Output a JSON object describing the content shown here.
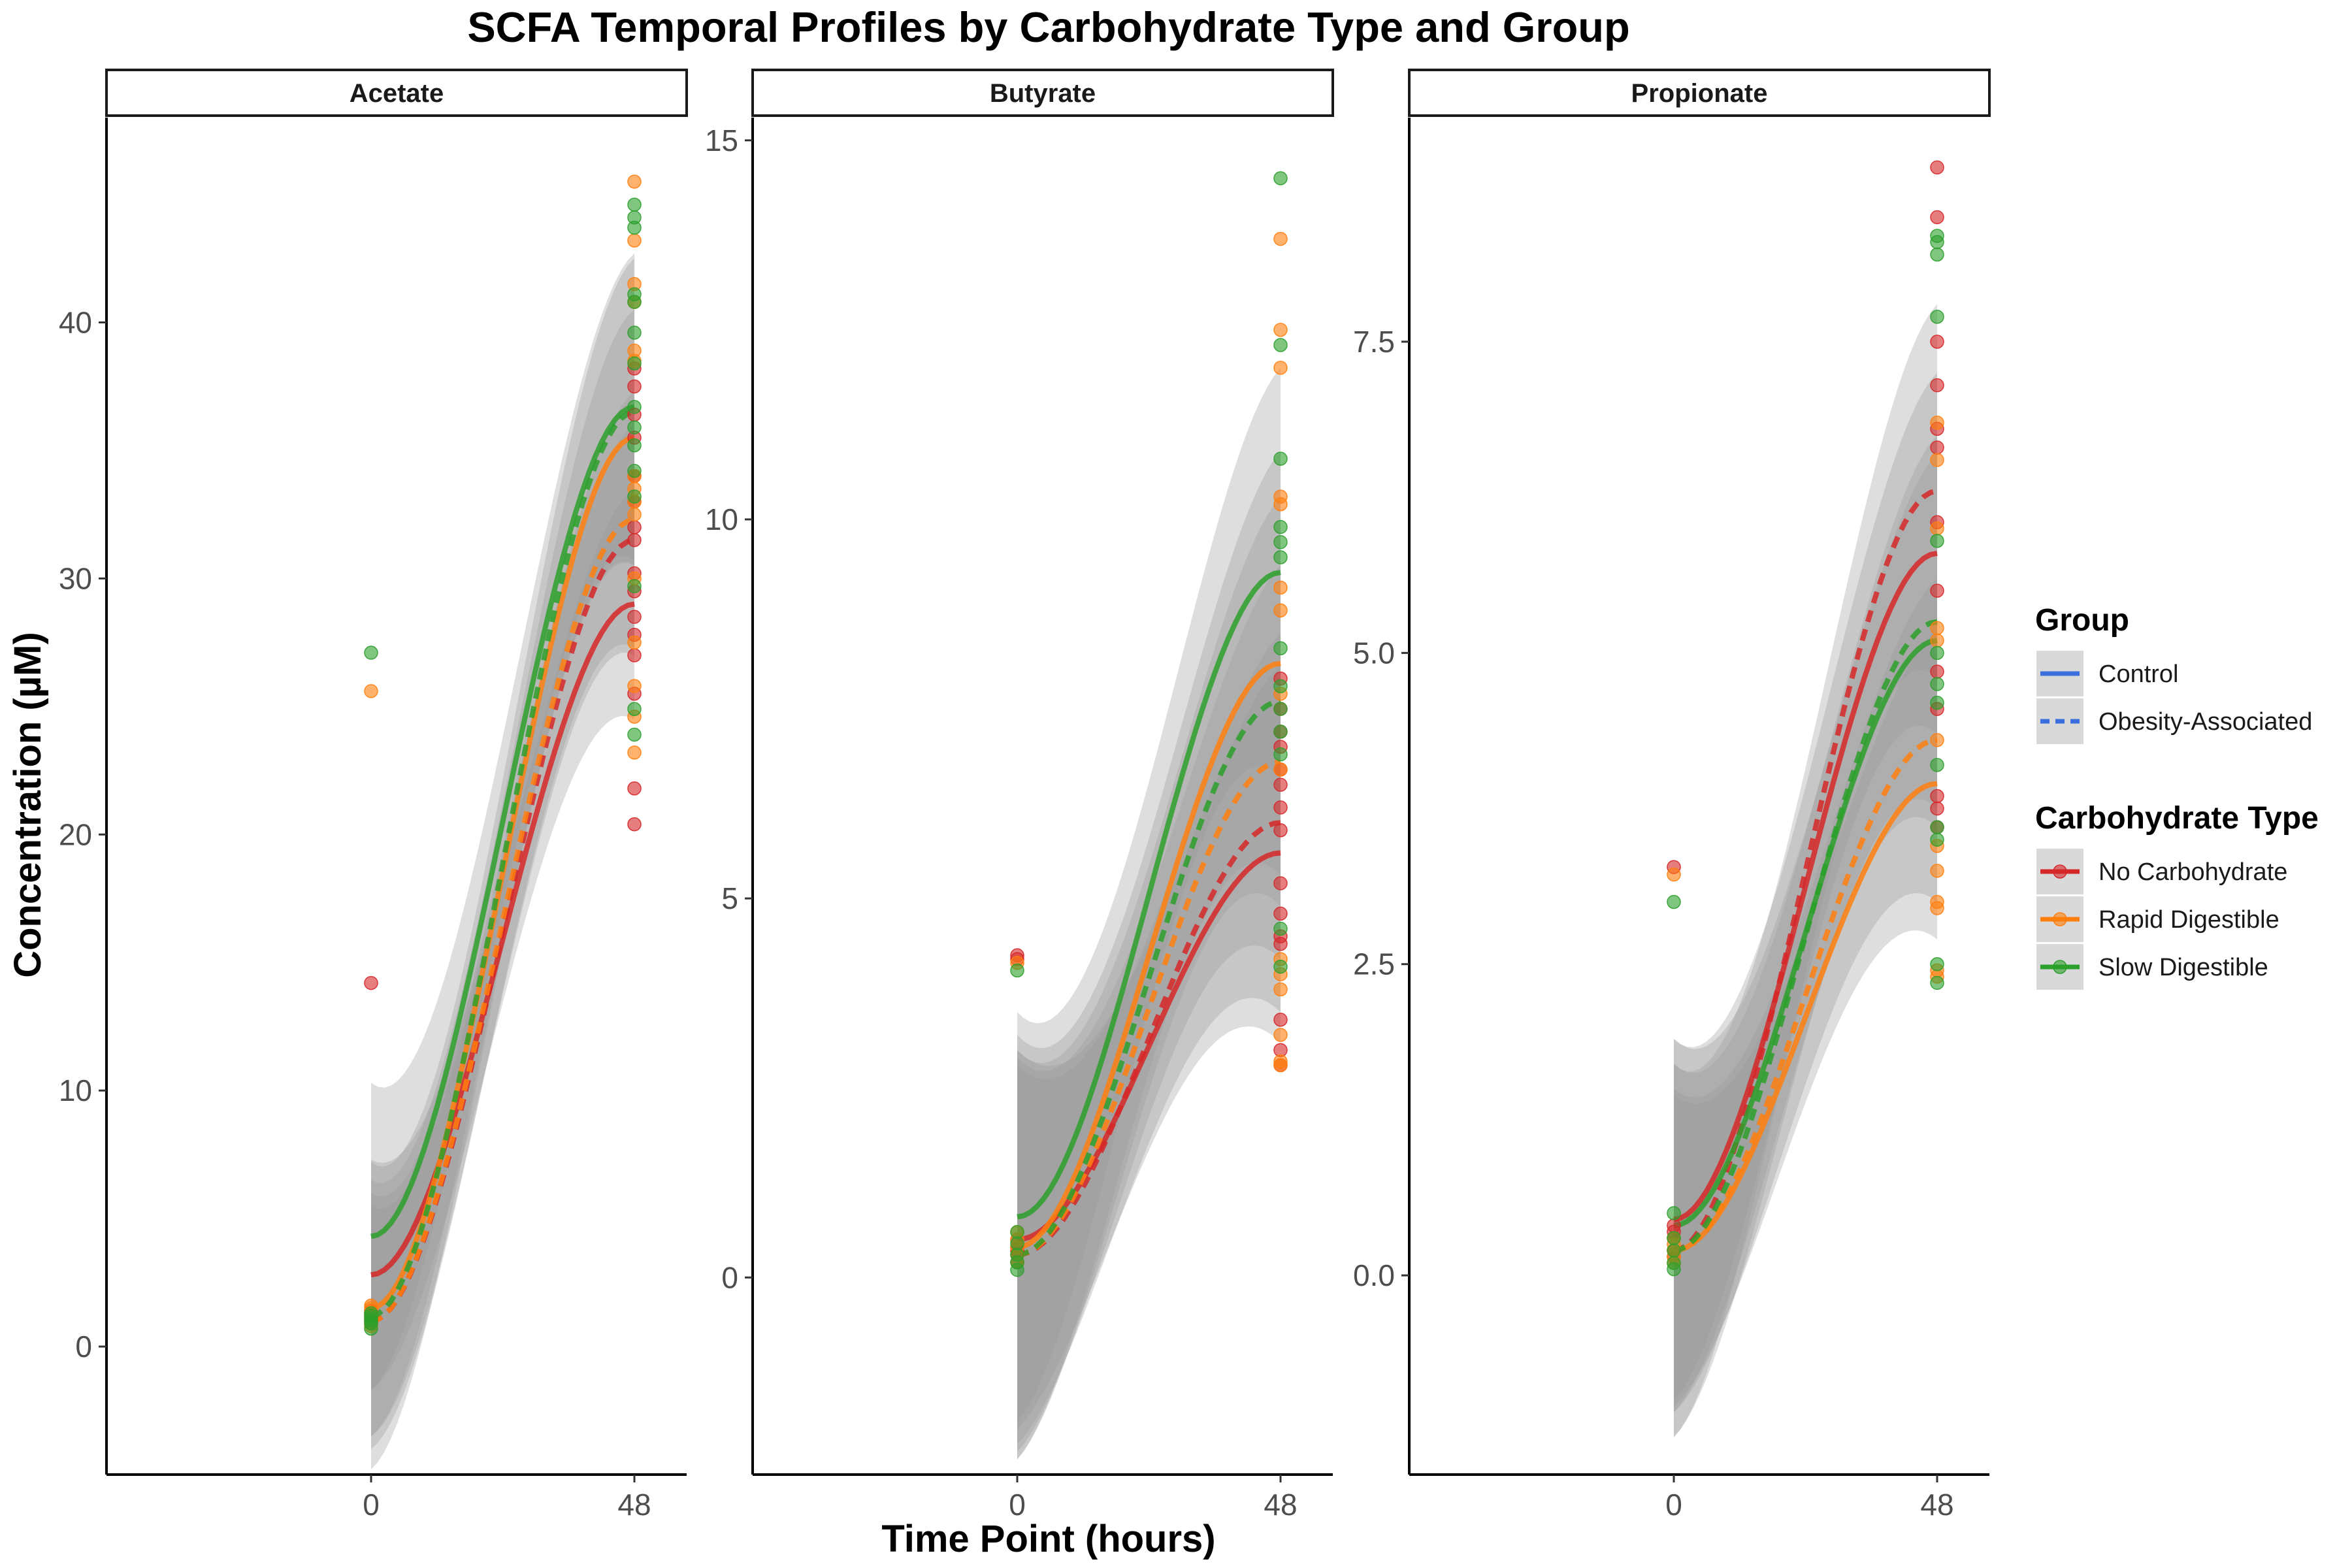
{
  "chart_data": {
    "type": "line",
    "title": "SCFA Temporal Profiles by Carbohydrate Type and Group",
    "xlabel": "Time Point (hours)",
    "ylabel": "Concentration (µM)",
    "x_ticks": [
      "0",
      "48"
    ],
    "x_values": [
      0,
      48
    ],
    "grid": false,
    "legend_position": "right",
    "legend": {
      "group": {
        "title": "Group",
        "entries": [
          {
            "label": "Control",
            "linetype": "solid",
            "color": "#3b6fe0"
          },
          {
            "label": "Obesity-Associated",
            "linetype": "dashed",
            "color": "#3b6fe0"
          }
        ]
      },
      "carb": {
        "title": "Carbohydrate Type",
        "entries": [
          {
            "label": "No Carbohydrate",
            "color": "#d62728"
          },
          {
            "label": "Rapid Digestible",
            "color": "#ff7f0e"
          },
          {
            "label": "Slow Digestible",
            "color": "#2ca02c"
          }
        ]
      }
    },
    "panels": [
      {
        "name": "Acetate",
        "ylim": [
          -5,
          48
        ],
        "yticks": [
          0,
          10,
          20,
          30,
          40
        ],
        "ytick_labels": [
          "0",
          "10",
          "20",
          "30",
          "40"
        ],
        "series": [
          {
            "carb": "No Carbohydrate",
            "group": "Control",
            "start": 2.8,
            "end": 29,
            "ci": 4.5
          },
          {
            "carb": "No Carbohydrate",
            "group": "Obesity-Associated",
            "start": 1.0,
            "end": 31.5,
            "ci": 4.5
          },
          {
            "carb": "Rapid Digestible",
            "group": "Control",
            "start": 1.5,
            "end": 35.5,
            "ci": 5
          },
          {
            "carb": "Rapid Digestible",
            "group": "Obesity-Associated",
            "start": 1.0,
            "end": 32.3,
            "ci": 5
          },
          {
            "carb": "Slow Digestible",
            "group": "Control",
            "start": 4.3,
            "end": 36.7,
            "ci": 6
          },
          {
            "carb": "Slow Digestible",
            "group": "Obesity-Associated",
            "start": 1.2,
            "end": 36.5,
            "ci": 6
          }
        ],
        "points": {
          "No Carbohydrate": {
            "t0": [
              14.2,
              1.2,
              1.0,
              1.3,
              0.9,
              1.1,
              1.4
            ],
            "t48": [
              38.2,
              37.5,
              36.4,
              35.5,
              34.0,
              33.0,
              32.0,
              31.5,
              30.2,
              29.5,
              28.5,
              27.8,
              27.0,
              25.5,
              21.8,
              20.4
            ]
          },
          "Rapid Digestible": {
            "t0": [
              25.6,
              1.5,
              1.2,
              1.0,
              0.8,
              1.3,
              1.6
            ],
            "t48": [
              45.5,
              43.2,
              41.5,
              40.8,
              38.9,
              38.5,
              34.0,
              33.5,
              33.0,
              32.5,
              30.0,
              27.5,
              25.8,
              24.6,
              23.2
            ]
          },
          "Slow Digestible": {
            "t0": [
              27.1,
              1.0,
              0.7,
              1.2,
              0.9,
              1.1,
              1.3
            ],
            "t48": [
              44.6,
              44.1,
              43.7,
              41.1,
              40.8,
              39.6,
              38.4,
              36.7,
              35.9,
              35.2,
              34.2,
              33.2,
              29.7,
              24.9,
              23.9
            ]
          }
        }
      },
      {
        "name": "Butyrate",
        "ylim": [
          -2.6,
          15.3
        ],
        "yticks": [
          0,
          5,
          10,
          15
        ],
        "ytick_labels": [
          "0",
          "5",
          "10",
          "15"
        ],
        "series": [
          {
            "carb": "No Carbohydrate",
            "group": "Control",
            "start": 0.5,
            "end": 5.6,
            "ci": 2.5
          },
          {
            "carb": "No Carbohydrate",
            "group": "Obesity-Associated",
            "start": 0.3,
            "end": 6.0,
            "ci": 2.5
          },
          {
            "carb": "Rapid Digestible",
            "group": "Control",
            "start": 0.4,
            "end": 8.1,
            "ci": 2.8
          },
          {
            "carb": "Rapid Digestible",
            "group": "Obesity-Associated",
            "start": 0.3,
            "end": 6.8,
            "ci": 2.6
          },
          {
            "carb": "Slow Digestible",
            "group": "Control",
            "start": 0.8,
            "end": 9.3,
            "ci": 2.7
          },
          {
            "carb": "Slow Digestible",
            "group": "Obesity-Associated",
            "start": 0.3,
            "end": 7.6,
            "ci": 2.7
          }
        ],
        "points": {
          "No Carbohydrate": {
            "t0": [
              4.25,
              4.2,
              0.4,
              0.3,
              0.2,
              0.5,
              0.35
            ],
            "t48": [
              7.9,
              7.5,
              7.2,
              7.0,
              6.7,
              6.5,
              6.2,
              5.9,
              5.2,
              4.8,
              4.5,
              4.4,
              3.4,
              3.0,
              2.8
            ]
          },
          "Rapid Digestible": {
            "t0": [
              4.15,
              0.5,
              0.3,
              0.4,
              0.2,
              0.6
            ],
            "t48": [
              13.7,
              12.5,
              12.0,
              10.3,
              10.2,
              9.1,
              8.8,
              7.7,
              6.7,
              4.2,
              4.0,
              3.8,
              3.2,
              2.8,
              2.85
            ]
          },
          "Slow Digestible": {
            "t0": [
              4.05,
              0.6,
              0.3,
              0.2,
              0.1,
              0.45
            ],
            "t48": [
              14.5,
              12.3,
              10.8,
              9.9,
              9.7,
              9.5,
              8.3,
              7.8,
              7.5,
              7.2,
              6.9,
              4.6,
              4.1
            ]
          }
        }
      },
      {
        "name": "Propionate",
        "ylim": [
          -1.6,
          9.3
        ],
        "yticks": [
          0,
          2.5,
          5,
          7.5
        ],
        "ytick_labels": [
          "0.0",
          "2.5",
          "5.0",
          "7.5"
        ],
        "series": [
          {
            "carb": "No Carbohydrate",
            "group": "Control",
            "start": 0.45,
            "end": 5.8,
            "ci": 1.45
          },
          {
            "carb": "No Carbohydrate",
            "group": "Obesity-Associated",
            "start": 0.2,
            "end": 6.3,
            "ci": 1.5
          },
          {
            "carb": "Rapid Digestible",
            "group": "Control",
            "start": 0.2,
            "end": 3.95,
            "ci": 1.25
          },
          {
            "carb": "Rapid Digestible",
            "group": "Obesity-Associated",
            "start": 0.2,
            "end": 4.3,
            "ci": 1.3
          },
          {
            "carb": "Slow Digestible",
            "group": "Control",
            "start": 0.4,
            "end": 5.1,
            "ci": 1.5
          },
          {
            "carb": "Slow Digestible",
            "group": "Obesity-Associated",
            "start": 0.2,
            "end": 5.25,
            "ci": 1.5
          }
        ],
        "points": {
          "No Carbohydrate": {
            "t0": [
              3.28,
              0.4,
              0.3,
              0.2,
              0.15,
              0.35
            ],
            "t48": [
              8.9,
              8.5,
              7.5,
              7.15,
              6.8,
              6.65,
              6.05,
              5.5,
              4.85,
              4.55,
              3.85,
              3.75,
              3.6
            ]
          },
          "Rapid Digestible": {
            "t0": [
              3.22,
              0.2,
              0.15,
              0.1,
              0.3,
              0.25
            ],
            "t48": [
              6.85,
              6.55,
              6.0,
              5.2,
              5.1,
              4.3,
              3.45,
              3.25,
              3.0,
              2.95,
              2.45,
              2.4
            ]
          },
          "Slow Digestible": {
            "t0": [
              3.0,
              0.5,
              0.1,
              0.05,
              0.3,
              0.2
            ],
            "t48": [
              8.35,
              8.3,
              8.2,
              7.7,
              5.9,
              5.0,
              4.75,
              4.6,
              4.1,
              3.6,
              3.5,
              2.5,
              2.35
            ]
          }
        }
      }
    ]
  }
}
